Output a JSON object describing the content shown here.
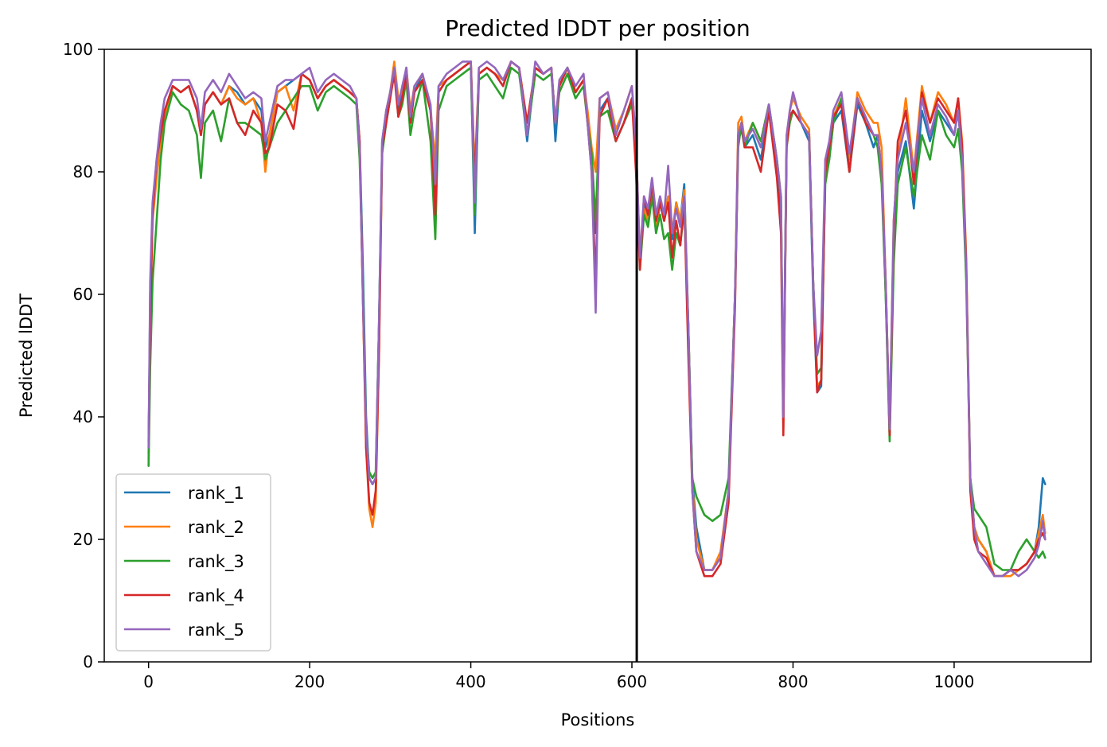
{
  "chart_data": {
    "type": "line",
    "title": "Predicted lDDT per position",
    "xlabel": "Positions",
    "ylabel": "Predicted lDDT",
    "xlim": [
      -55,
      1170
    ],
    "ylim": [
      0,
      100
    ],
    "x_ticks": [
      0,
      200,
      400,
      600,
      800,
      1000
    ],
    "y_ticks": [
      0,
      20,
      40,
      60,
      80,
      100
    ],
    "grid": false,
    "legend_position": "lower-left",
    "vertical_lines": [
      606
    ],
    "x": [
      0,
      2,
      5,
      10,
      15,
      20,
      30,
      40,
      50,
      60,
      65,
      70,
      80,
      90,
      100,
      110,
      120,
      130,
      140,
      145,
      150,
      160,
      170,
      180,
      190,
      200,
      210,
      220,
      230,
      240,
      250,
      258,
      262,
      266,
      270,
      274,
      278,
      282,
      286,
      290,
      295,
      300,
      305,
      310,
      315,
      320,
      325,
      330,
      340,
      350,
      356,
      360,
      370,
      380,
      390,
      400,
      405,
      410,
      420,
      430,
      440,
      450,
      460,
      470,
      480,
      490,
      500,
      505,
      510,
      520,
      530,
      540,
      545,
      550,
      555,
      560,
      570,
      580,
      590,
      600,
      605,
      610,
      615,
      620,
      625,
      630,
      635,
      640,
      645,
      650,
      655,
      660,
      665,
      670,
      675,
      680,
      690,
      700,
      710,
      720,
      728,
      732,
      736,
      740,
      750,
      760,
      770,
      780,
      785,
      788,
      792,
      796,
      800,
      810,
      820,
      825,
      830,
      835,
      840,
      845,
      850,
      860,
      870,
      880,
      890,
      900,
      905,
      910,
      915,
      920,
      925,
      930,
      940,
      950,
      960,
      970,
      980,
      990,
      1000,
      1005,
      1010,
      1015,
      1020,
      1025,
      1030,
      1040,
      1050,
      1060,
      1070,
      1080,
      1090,
      1100,
      1105,
      1110,
      1113
    ],
    "series": [
      {
        "name": "rank_1",
        "color": "#1f77b4",
        "values": [
          34,
          60,
          74,
          80,
          86,
          90,
          94,
          93,
          94,
          90,
          86,
          91,
          93,
          91,
          94,
          93,
          91,
          92,
          90,
          84,
          86,
          93,
          94,
          95,
          96,
          95,
          92,
          94,
          95,
          94,
          93,
          92,
          85,
          65,
          40,
          30,
          29,
          30,
          55,
          85,
          90,
          93,
          97,
          90,
          93,
          97,
          88,
          93,
          96,
          90,
          78,
          93,
          95,
          96,
          97,
          98,
          70,
          96,
          97,
          96,
          94,
          98,
          97,
          85,
          97,
          96,
          97,
          85,
          94,
          97,
          93,
          95,
          88,
          82,
          70,
          90,
          92,
          85,
          88,
          92,
          85,
          65,
          75,
          72,
          77,
          70,
          75,
          72,
          76,
          69,
          75,
          72,
          78,
          55,
          30,
          22,
          15,
          15,
          17,
          28,
          60,
          85,
          87,
          84,
          86,
          82,
          90,
          80,
          74,
          40,
          85,
          89,
          90,
          88,
          85,
          60,
          44,
          45,
          80,
          82,
          88,
          90,
          80,
          91,
          88,
          84,
          86,
          80,
          60,
          37,
          70,
          80,
          85,
          74,
          90,
          85,
          90,
          88,
          86,
          90,
          82,
          65,
          30,
          22,
          20,
          18,
          14,
          14,
          15,
          15,
          16,
          18,
          22,
          30,
          29
        ]
      },
      {
        "name": "rank_2",
        "color": "#ff7f0e",
        "values": [
          33,
          58,
          72,
          79,
          85,
          89,
          94,
          93,
          94,
          90,
          86,
          91,
          93,
          91,
          94,
          92,
          91,
          92,
          88,
          80,
          86,
          93,
          94,
          90,
          96,
          95,
          92,
          94,
          95,
          94,
          93,
          92,
          85,
          60,
          35,
          25,
          22,
          26,
          50,
          84,
          90,
          93,
          98,
          92,
          93,
          97,
          90,
          94,
          96,
          90,
          82,
          94,
          95,
          96,
          97,
          98,
          80,
          96,
          97,
          96,
          95,
          98,
          97,
          88,
          97,
          96,
          97,
          88,
          94,
          97,
          93,
          95,
          90,
          84,
          80,
          92,
          93,
          87,
          90,
          94,
          85,
          66,
          74,
          72,
          77,
          71,
          75,
          72,
          76,
          70,
          75,
          72,
          77,
          55,
          29,
          20,
          15,
          15,
          18,
          28,
          60,
          88,
          89,
          85,
          88,
          85,
          91,
          82,
          76,
          38,
          85,
          90,
          92,
          89,
          87,
          62,
          45,
          46,
          82,
          84,
          89,
          92,
          82,
          93,
          90,
          88,
          88,
          84,
          62,
          38,
          72,
          82,
          92,
          80,
          94,
          88,
          93,
          91,
          88,
          92,
          85,
          66,
          30,
          22,
          20,
          18,
          14,
          14,
          14,
          15,
          16,
          18,
          21,
          24,
          21
        ]
      },
      {
        "name": "rank_3",
        "color": "#2ca02c",
        "values": [
          32,
          48,
          62,
          72,
          82,
          88,
          93,
          91,
          90,
          86,
          79,
          88,
          90,
          85,
          92,
          88,
          88,
          87,
          86,
          82,
          84,
          88,
          90,
          92,
          94,
          94,
          90,
          93,
          94,
          93,
          92,
          91,
          82,
          62,
          38,
          31,
          30,
          31,
          55,
          83,
          88,
          92,
          97,
          89,
          91,
          95,
          86,
          90,
          95,
          85,
          69,
          90,
          94,
          95,
          96,
          97,
          73,
          95,
          96,
          94,
          92,
          97,
          96,
          86,
          96,
          95,
          96,
          88,
          93,
          96,
          92,
          94,
          88,
          83,
          72,
          89,
          90,
          85,
          88,
          91,
          84,
          64,
          73,
          71,
          76,
          70,
          73,
          69,
          70,
          64,
          70,
          68,
          74,
          55,
          30,
          27,
          24,
          23,
          24,
          30,
          60,
          84,
          88,
          84,
          88,
          85,
          91,
          82,
          76,
          40,
          84,
          88,
          90,
          88,
          86,
          62,
          47,
          48,
          78,
          82,
          88,
          92,
          80,
          92,
          88,
          86,
          84,
          78,
          60,
          36,
          65,
          78,
          84,
          76,
          86,
          82,
          90,
          86,
          84,
          87,
          80,
          62,
          30,
          25,
          24,
          22,
          16,
          15,
          15,
          18,
          20,
          18,
          17,
          18,
          17
        ]
      },
      {
        "name": "rank_4",
        "color": "#d62728",
        "values": [
          36,
          55,
          73,
          82,
          86,
          90,
          94,
          93,
          94,
          90,
          86,
          91,
          93,
          91,
          92,
          88,
          86,
          90,
          88,
          83,
          84,
          91,
          90,
          87,
          96,
          95,
          92,
          94,
          95,
          94,
          93,
          92,
          85,
          60,
          35,
          26,
          24,
          28,
          50,
          84,
          88,
          92,
          96,
          89,
          92,
          96,
          88,
          93,
          95,
          90,
          73,
          93,
          95,
          96,
          97,
          98,
          78,
          96,
          97,
          96,
          94,
          98,
          97,
          88,
          97,
          96,
          97,
          88,
          94,
          97,
          93,
          95,
          88,
          80,
          62,
          89,
          92,
          85,
          88,
          92,
          80,
          64,
          76,
          73,
          78,
          72,
          75,
          72,
          75,
          66,
          72,
          68,
          75,
          50,
          28,
          18,
          14,
          14,
          16,
          26,
          58,
          86,
          88,
          84,
          84,
          80,
          90,
          79,
          70,
          37,
          84,
          89,
          90,
          88,
          86,
          62,
          44,
          46,
          80,
          84,
          89,
          91,
          80,
          92,
          88,
          86,
          86,
          80,
          62,
          37,
          70,
          85,
          90,
          78,
          93,
          88,
          92,
          90,
          88,
          92,
          84,
          65,
          28,
          20,
          18,
          17,
          14,
          14,
          15,
          15,
          16,
          18,
          20,
          21,
          20
        ]
      },
      {
        "name": "rank_5",
        "color": "#9467bd",
        "values": [
          35,
          62,
          75,
          82,
          88,
          92,
          95,
          95,
          95,
          92,
          87,
          93,
          95,
          93,
          96,
          94,
          92,
          93,
          92,
          85,
          88,
          94,
          95,
          95,
          96,
          97,
          93,
          95,
          96,
          95,
          94,
          92,
          84,
          60,
          38,
          30,
          29,
          30,
          55,
          85,
          90,
          93,
          97,
          91,
          94,
          97,
          89,
          94,
          96,
          91,
          78,
          94,
          96,
          97,
          98,
          98,
          75,
          97,
          98,
          97,
          95,
          98,
          97,
          86,
          98,
          96,
          97,
          88,
          95,
          97,
          94,
          96,
          88,
          80,
          57,
          92,
          93,
          86,
          90,
          94,
          85,
          66,
          76,
          74,
          79,
          73,
          76,
          73,
          81,
          70,
          74,
          71,
          76,
          55,
          28,
          18,
          15,
          15,
          17,
          28,
          60,
          86,
          88,
          85,
          87,
          84,
          91,
          82,
          76,
          40,
          86,
          90,
          93,
          88,
          86,
          62,
          50,
          54,
          82,
          85,
          90,
          93,
          83,
          92,
          89,
          86,
          86,
          80,
          62,
          38,
          72,
          82,
          88,
          80,
          92,
          86,
          91,
          89,
          86,
          90,
          82,
          64,
          30,
          22,
          18,
          16,
          14,
          14,
          15,
          14,
          15,
          17,
          19,
          23,
          20
        ]
      }
    ]
  }
}
